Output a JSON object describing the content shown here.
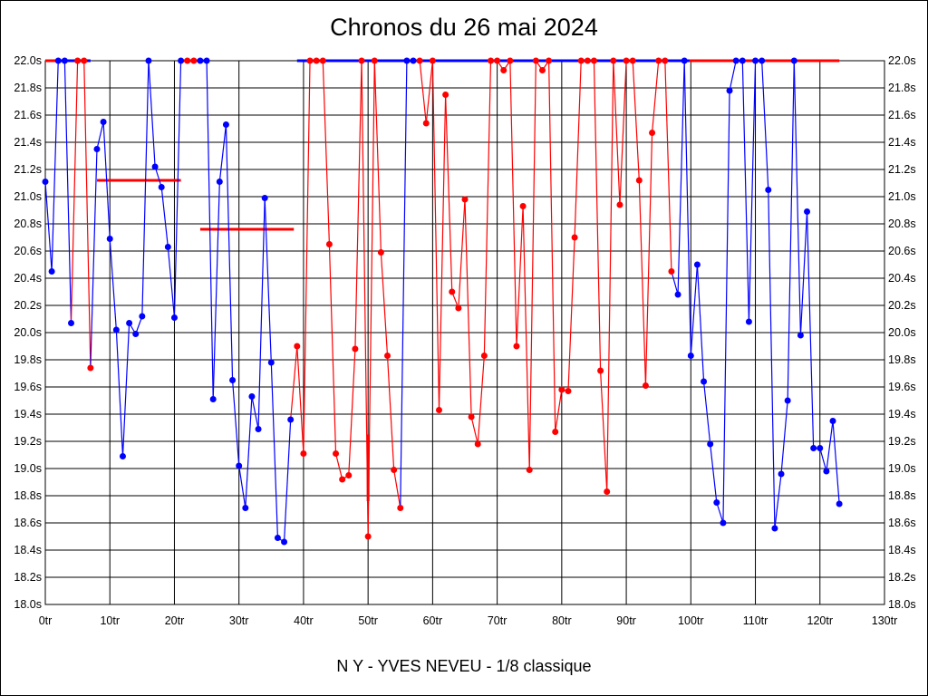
{
  "chart_data": {
    "type": "line",
    "title": "Chronos du 26 mai 2024",
    "footer": "N Y - YVES NEVEU - 1/8 classique",
    "xlabel": "",
    "ylabel": "",
    "xlim": [
      0,
      130
    ],
    "ylim": [
      18.0,
      22.0
    ],
    "grid": true,
    "x_ticks": [
      "0tr",
      "10tr",
      "20tr",
      "30tr",
      "40tr",
      "50tr",
      "60tr",
      "70tr",
      "80tr",
      "90tr",
      "100tr",
      "110tr",
      "120tr",
      "130tr"
    ],
    "y_ticks": [
      "18.0s",
      "18.2s",
      "18.4s",
      "18.6s",
      "18.8s",
      "19.0s",
      "19.2s",
      "19.4s",
      "19.6s",
      "19.8s",
      "20.0s",
      "20.2s",
      "20.4s",
      "20.6s",
      "20.8s",
      "21.0s",
      "21.2s",
      "21.4s",
      "21.6s",
      "21.8s",
      "22.0s"
    ],
    "colors": {
      "blue": "#0000ff",
      "red": "#ff0000"
    },
    "points": [
      [
        21.11,
        "blue"
      ],
      [
        20.45,
        "blue"
      ],
      [
        22.0,
        "blue"
      ],
      [
        22.0,
        "blue"
      ],
      [
        20.07,
        "blue"
      ],
      [
        22.0,
        "red"
      ],
      [
        22.0,
        "red"
      ],
      [
        19.74,
        "red"
      ],
      [
        21.35,
        "blue"
      ],
      [
        21.55,
        "blue"
      ],
      [
        20.69,
        "blue"
      ],
      [
        20.02,
        "blue"
      ],
      [
        19.09,
        "blue"
      ],
      [
        20.07,
        "blue"
      ],
      [
        19.99,
        "blue"
      ],
      [
        20.12,
        "blue"
      ],
      [
        22.0,
        "blue"
      ],
      [
        21.22,
        "blue"
      ],
      [
        21.07,
        "blue"
      ],
      [
        20.63,
        "blue"
      ],
      [
        20.11,
        "blue"
      ],
      [
        22.0,
        "blue"
      ],
      [
        22.0,
        "red"
      ],
      [
        22.0,
        "red"
      ],
      [
        22.0,
        "blue"
      ],
      [
        22.0,
        "blue"
      ],
      [
        19.51,
        "blue"
      ],
      [
        21.11,
        "blue"
      ],
      [
        21.53,
        "blue"
      ],
      [
        19.65,
        "blue"
      ],
      [
        19.02,
        "blue"
      ],
      [
        18.71,
        "blue"
      ],
      [
        19.53,
        "blue"
      ],
      [
        19.29,
        "blue"
      ],
      [
        20.99,
        "blue"
      ],
      [
        19.78,
        "blue"
      ],
      [
        18.49,
        "blue"
      ],
      [
        18.46,
        "blue"
      ],
      [
        19.36,
        "blue"
      ],
      [
        19.9,
        "red"
      ],
      [
        19.11,
        "red"
      ],
      [
        22.0,
        "red"
      ],
      [
        22.0,
        "red"
      ],
      [
        22.0,
        "red"
      ],
      [
        20.65,
        "red"
      ],
      [
        19.11,
        "red"
      ],
      [
        18.92,
        "red"
      ],
      [
        18.95,
        "red"
      ],
      [
        19.88,
        "red"
      ],
      [
        22.0,
        "red"
      ],
      [
        18.5,
        "red"
      ],
      [
        22.0,
        "red"
      ],
      [
        20.59,
        "red"
      ],
      [
        19.83,
        "red"
      ],
      [
        18.99,
        "red"
      ],
      [
        18.71,
        "red"
      ],
      [
        22.0,
        "blue"
      ],
      [
        22.0,
        "blue"
      ],
      [
        22.0,
        "red"
      ],
      [
        21.54,
        "red"
      ],
      [
        22.0,
        "red"
      ],
      [
        19.43,
        "red"
      ],
      [
        21.75,
        "red"
      ],
      [
        20.3,
        "red"
      ],
      [
        20.18,
        "red"
      ],
      [
        20.98,
        "red"
      ],
      [
        19.38,
        "red"
      ],
      [
        19.18,
        "red"
      ],
      [
        19.83,
        "red"
      ],
      [
        22.0,
        "red"
      ],
      [
        22.0,
        "red"
      ],
      [
        21.93,
        "red"
      ],
      [
        22.0,
        "red"
      ],
      [
        19.9,
        "red"
      ],
      [
        20.93,
        "red"
      ],
      [
        18.99,
        "red"
      ],
      [
        22.0,
        "red"
      ],
      [
        21.93,
        "red"
      ],
      [
        22.0,
        "red"
      ],
      [
        19.27,
        "red"
      ],
      [
        19.58,
        "red"
      ],
      [
        19.57,
        "red"
      ],
      [
        20.7,
        "red"
      ],
      [
        22.0,
        "red"
      ],
      [
        22.0,
        "red"
      ],
      [
        22.0,
        "red"
      ],
      [
        19.72,
        "red"
      ],
      [
        18.83,
        "red"
      ],
      [
        22.0,
        "red"
      ],
      [
        20.94,
        "red"
      ],
      [
        22.0,
        "red"
      ],
      [
        22.0,
        "red"
      ],
      [
        21.12,
        "red"
      ],
      [
        19.61,
        "red"
      ],
      [
        21.47,
        "red"
      ],
      [
        22.0,
        "red"
      ],
      [
        22.0,
        "red"
      ],
      [
        20.45,
        "red"
      ],
      [
        20.28,
        "blue"
      ],
      [
        22.0,
        "blue"
      ],
      [
        19.83,
        "blue"
      ],
      [
        20.5,
        "blue"
      ],
      [
        19.64,
        "blue"
      ],
      [
        19.18,
        "blue"
      ],
      [
        18.75,
        "blue"
      ],
      [
        18.6,
        "blue"
      ],
      [
        21.78,
        "blue"
      ],
      [
        22.0,
        "blue"
      ],
      [
        22.0,
        "blue"
      ],
      [
        20.08,
        "blue"
      ],
      [
        22.0,
        "blue"
      ],
      [
        22.0,
        "blue"
      ],
      [
        21.05,
        "blue"
      ],
      [
        18.56,
        "blue"
      ],
      [
        18.96,
        "blue"
      ],
      [
        19.5,
        "blue"
      ],
      [
        22.0,
        "blue"
      ],
      [
        19.98,
        "blue"
      ],
      [
        20.89,
        "blue"
      ],
      [
        19.15,
        "blue"
      ],
      [
        19.15,
        "blue"
      ],
      [
        18.98,
        "blue"
      ],
      [
        19.35,
        "blue"
      ],
      [
        18.74,
        "blue"
      ]
    ],
    "top_bars": [
      {
        "from": 0,
        "to": 2,
        "color": "red"
      },
      {
        "from": 2,
        "to": 7,
        "color": "blue"
      },
      {
        "from": 21,
        "to": 24,
        "color": "red"
      },
      {
        "from": 24,
        "to": 25,
        "color": "blue"
      },
      {
        "from": 39,
        "to": 99.8,
        "color": "blue"
      },
      {
        "from": 99.8,
        "to": 123,
        "color": "red"
      }
    ],
    "reference_lines": [
      {
        "from": 8,
        "to": 21,
        "value": 21.12,
        "color": "red"
      },
      {
        "from": 24,
        "to": 38.5,
        "value": 20.76,
        "color": "red"
      }
    ],
    "vertical_marks": [
      {
        "x": 50,
        "from": 18.76,
        "to": 19.25,
        "color": "red"
      }
    ]
  }
}
